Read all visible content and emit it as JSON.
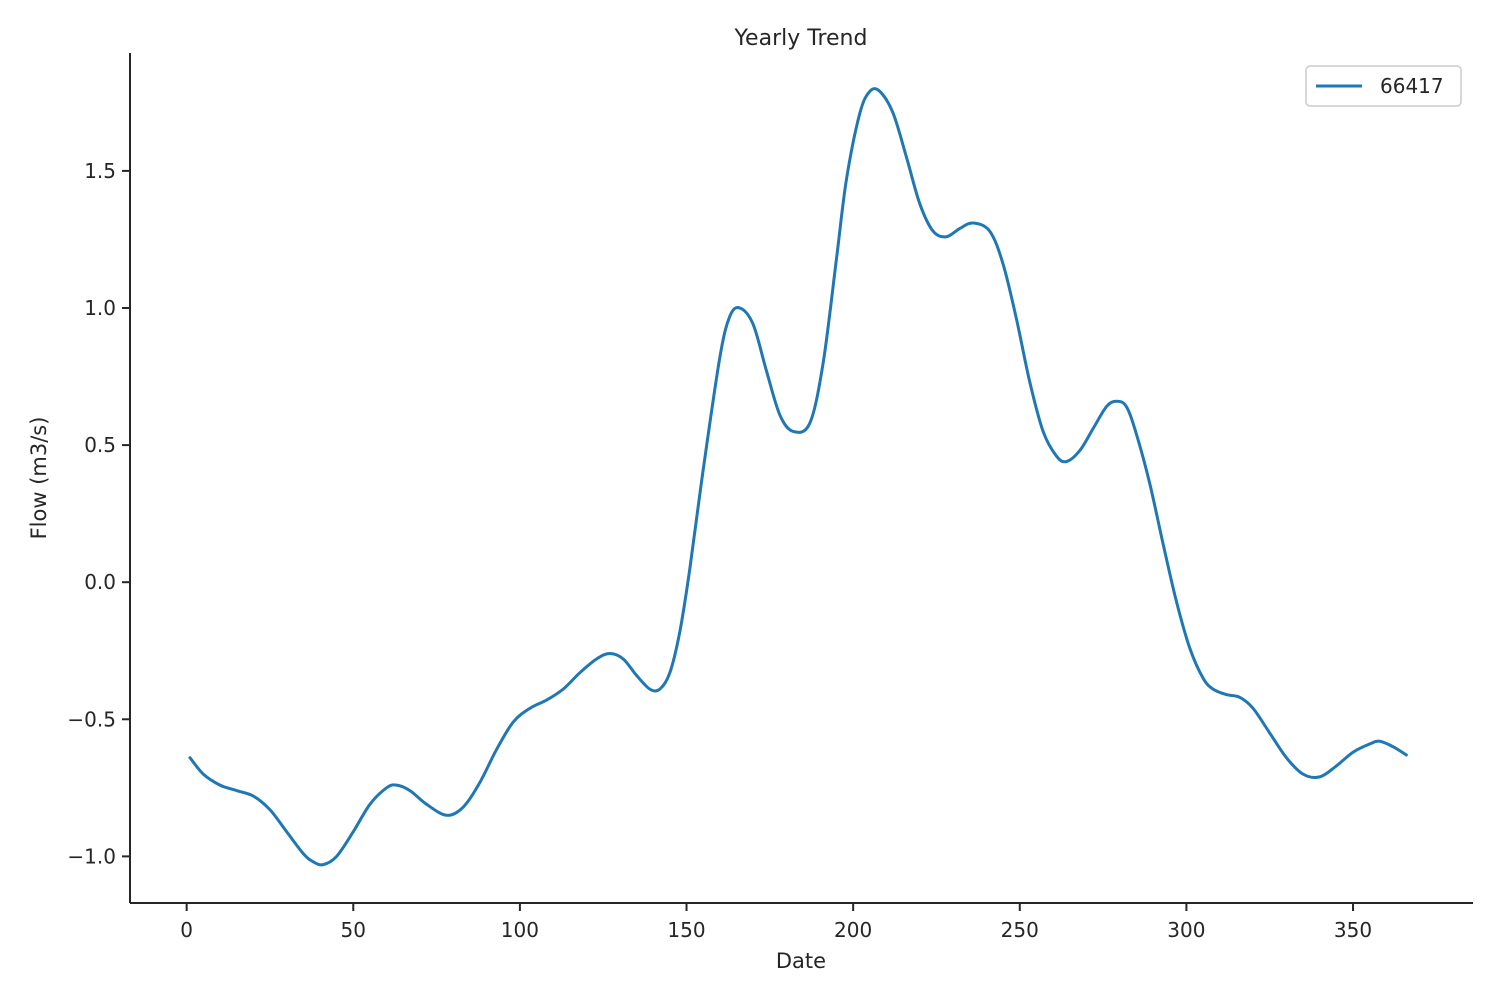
{
  "chart_data": {
    "type": "line",
    "title": "Yearly Trend",
    "xlabel": "Date",
    "ylabel": "Flow (m3/s)",
    "xlim": [
      -17,
      386
    ],
    "ylim": [
      -1.17,
      1.93
    ],
    "xticks": [
      0,
      50,
      100,
      150,
      200,
      250,
      300,
      350
    ],
    "xtick_labels": [
      "0",
      "50",
      "100",
      "150",
      "200",
      "250",
      "300",
      "350"
    ],
    "yticks": [
      -1.0,
      -0.5,
      0.0,
      0.5,
      1.0,
      1.5
    ],
    "ytick_labels": [
      "−1.0",
      "−0.5",
      "0.0",
      "0.5",
      "1.0",
      "1.5"
    ],
    "grid": false,
    "legend_position": "top-right",
    "series": [
      {
        "name": "66417",
        "color": "#1f77b4",
        "x": [
          1,
          5,
          10,
          15,
          20,
          25,
          30,
          35,
          38,
          41,
          45,
          50,
          55,
          60,
          63,
          67,
          72,
          78,
          83,
          88,
          93,
          98,
          103,
          108,
          113,
          118,
          123,
          127,
          131,
          135,
          139,
          142,
          145,
          148,
          151,
          155,
          160,
          163,
          166,
          170,
          174,
          178,
          182,
          187,
          191,
          195,
          198,
          202,
          205,
          208,
          212,
          216,
          220,
          224,
          228,
          232,
          236,
          241,
          245,
          249,
          253,
          257,
          261,
          264,
          268,
          272,
          276,
          279,
          282,
          285,
          289,
          293,
          297,
          301,
          305,
          308,
          312,
          316,
          320,
          325,
          330,
          335,
          340,
          345,
          350,
          355,
          358,
          362,
          366
        ],
        "y": [
          -0.64,
          -0.7,
          -0.74,
          -0.76,
          -0.78,
          -0.83,
          -0.91,
          -0.99,
          -1.02,
          -1.03,
          -1.0,
          -0.91,
          -0.81,
          -0.75,
          -0.74,
          -0.76,
          -0.81,
          -0.85,
          -0.82,
          -0.73,
          -0.61,
          -0.51,
          -0.46,
          -0.43,
          -0.39,
          -0.33,
          -0.28,
          -0.26,
          -0.28,
          -0.34,
          -0.39,
          -0.39,
          -0.33,
          -0.18,
          0.05,
          0.41,
          0.82,
          0.97,
          1.0,
          0.94,
          0.77,
          0.61,
          0.55,
          0.58,
          0.8,
          1.18,
          1.47,
          1.71,
          1.79,
          1.79,
          1.71,
          1.55,
          1.38,
          1.28,
          1.26,
          1.29,
          1.31,
          1.28,
          1.16,
          0.96,
          0.73,
          0.55,
          0.46,
          0.44,
          0.48,
          0.56,
          0.64,
          0.66,
          0.64,
          0.54,
          0.36,
          0.14,
          -0.07,
          -0.24,
          -0.35,
          -0.39,
          -0.41,
          -0.42,
          -0.46,
          -0.55,
          -0.64,
          -0.7,
          -0.71,
          -0.67,
          -0.62,
          -0.59,
          -0.58,
          -0.6,
          -0.63
        ]
      }
    ]
  }
}
